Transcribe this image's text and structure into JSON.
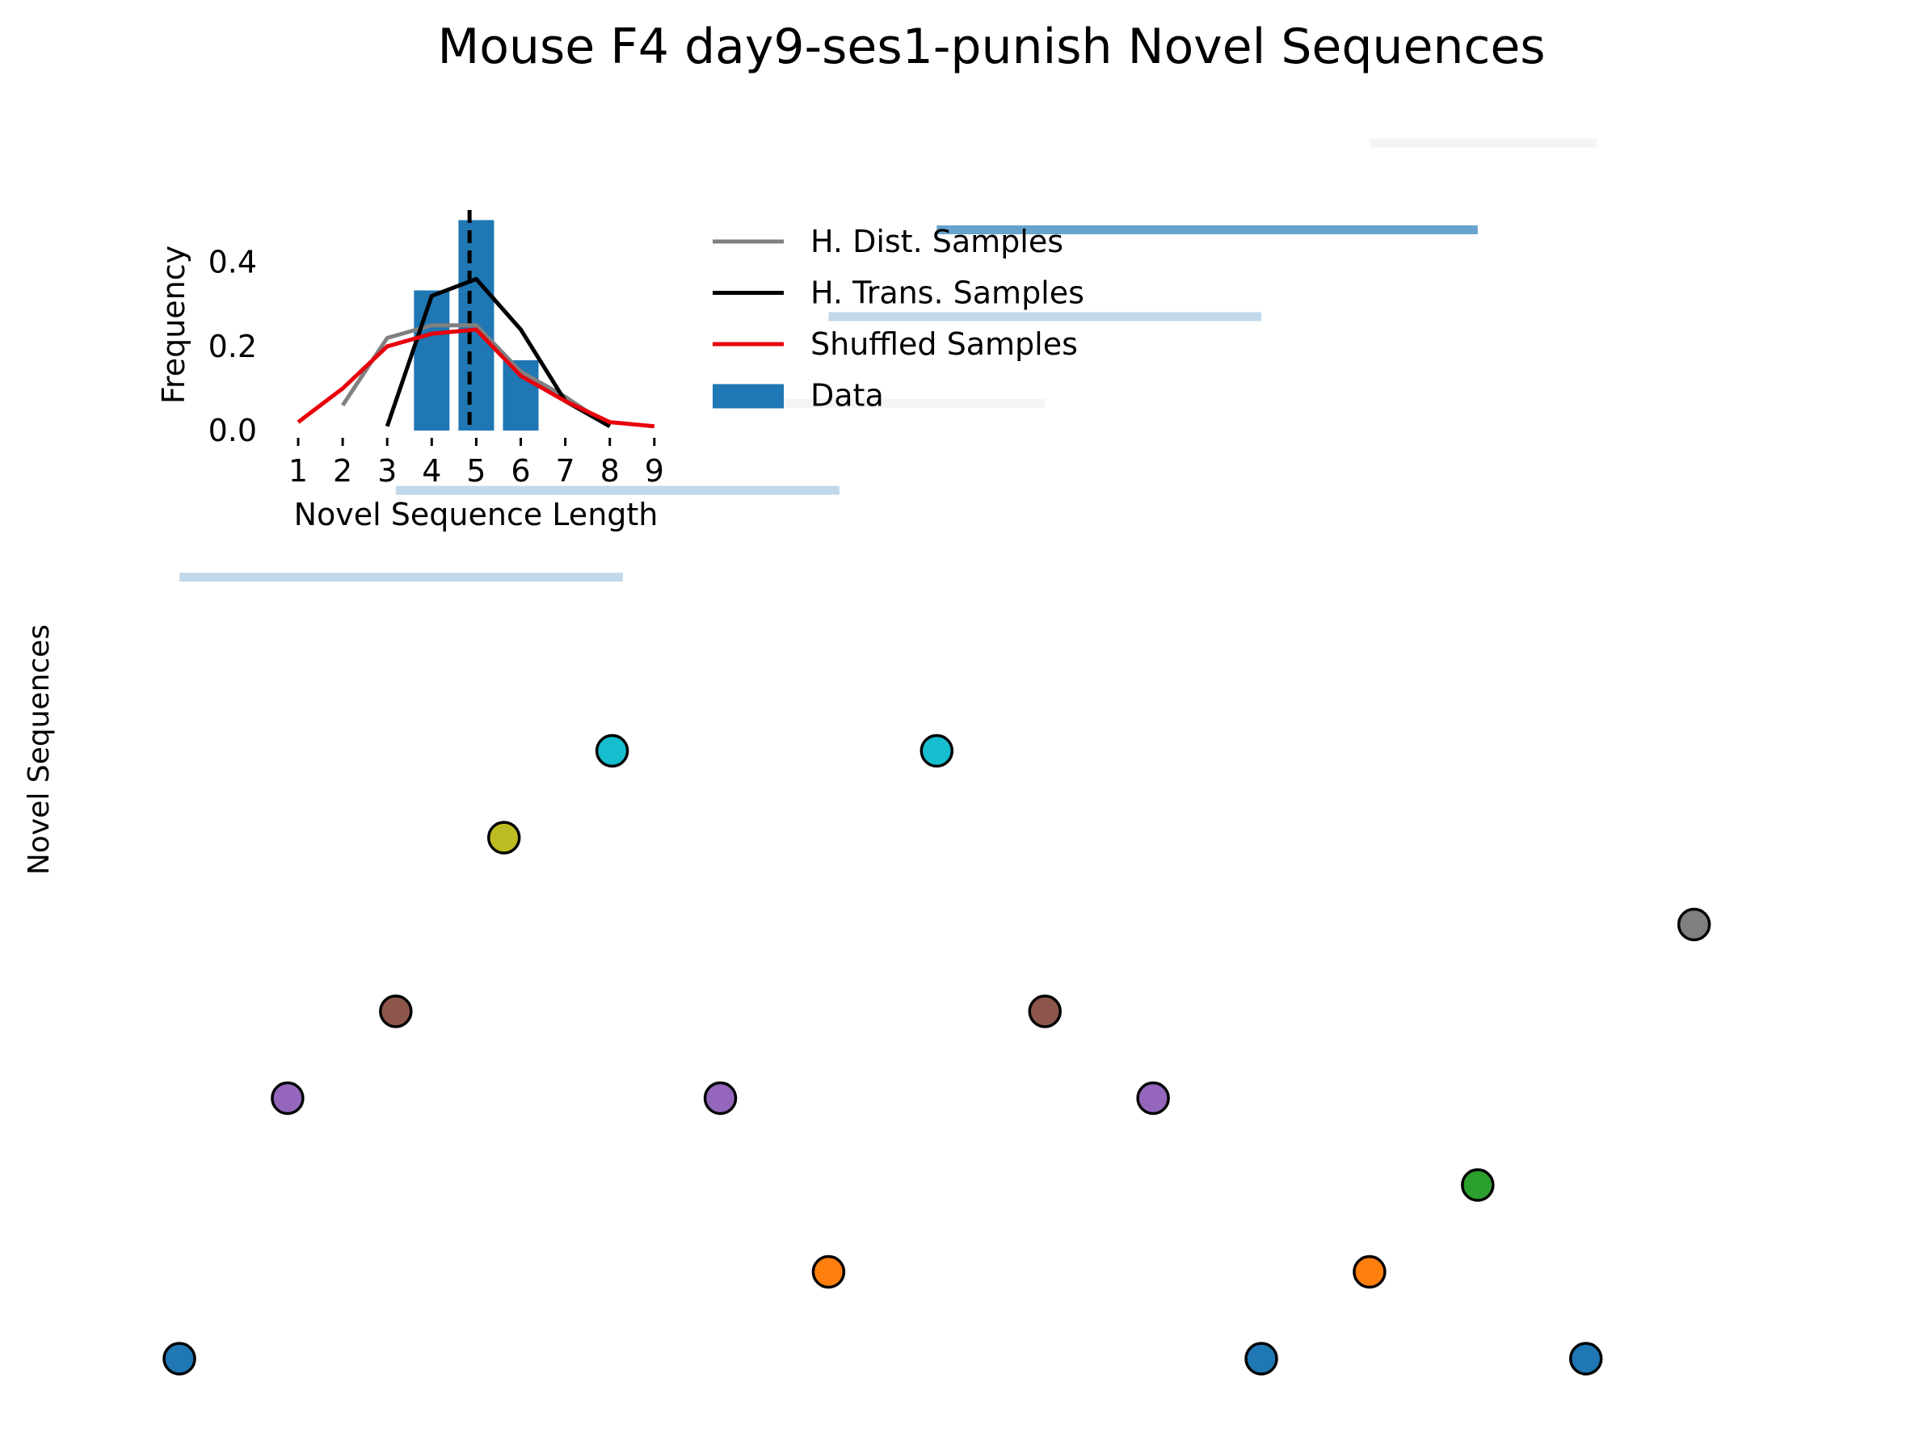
{
  "title": "Mouse F4 day9-ses1-punish Novel Sequences",
  "chart_data": [
    {
      "type": "scatter",
      "ylabel": "Novel Sequences",
      "axes_visible": false,
      "points": [
        {
          "x": 0,
          "y": 0,
          "color": "#1f77b4"
        },
        {
          "x": 1,
          "y": 3,
          "color": "#9467bd"
        },
        {
          "x": 2,
          "y": 4,
          "color": "#8c564b"
        },
        {
          "x": 3,
          "y": 6,
          "color": "#bcbd22"
        },
        {
          "x": 4,
          "y": 7,
          "color": "#17becf"
        },
        {
          "x": 5,
          "y": 3,
          "color": "#9467bd"
        },
        {
          "x": 6,
          "y": 1,
          "color": "#ff7f0e"
        },
        {
          "x": 7,
          "y": 7,
          "color": "#17becf"
        },
        {
          "x": 8,
          "y": 4,
          "color": "#8c564b"
        },
        {
          "x": 9,
          "y": 3,
          "color": "#9467bd"
        },
        {
          "x": 10,
          "y": 0,
          "color": "#1f77b4"
        },
        {
          "x": 11,
          "y": 1,
          "color": "#ff7f0e"
        },
        {
          "x": 12,
          "y": 2,
          "color": "#2ca02c"
        },
        {
          "x": 13,
          "y": 0,
          "color": "#1f77b4"
        },
        {
          "x": 14,
          "y": 5,
          "color": "#7f7f7f"
        }
      ],
      "span_bars": [
        {
          "x0": 0.0,
          "x1": 4.1,
          "level": 9,
          "color": "#1f77b4",
          "opacity": 0.28
        },
        {
          "x0": 2.0,
          "x1": 6.1,
          "level": 10,
          "color": "#1f77b4",
          "opacity": 0.28
        },
        {
          "x0": 5.5,
          "x1": 8.0,
          "level": 11,
          "color": "#d9d9d9",
          "opacity": 0.3
        },
        {
          "x0": 6.0,
          "x1": 10.0,
          "level": 12,
          "color": "#1f77b4",
          "opacity": 0.28
        },
        {
          "x0": 7.0,
          "x1": 12.0,
          "level": 13,
          "color": "#1f77b4",
          "opacity": 0.68
        },
        {
          "x0": 11.0,
          "x1": 13.1,
          "level": 14,
          "color": "#d9d9d9",
          "opacity": 0.3
        }
      ]
    },
    {
      "type": "bar",
      "xlabel": "Novel Sequence Length",
      "ylabel": "Frequency",
      "ylim": [
        0,
        0.5
      ],
      "x_ticks": [
        1,
        2,
        3,
        4,
        5,
        6,
        7,
        8,
        9
      ],
      "y_ticks": [
        "0.0",
        "0.2",
        "0.4"
      ],
      "y_tick_values": [
        0.0,
        0.2,
        0.4
      ],
      "bars": {
        "name": "Data",
        "categories": [
          4,
          5,
          6
        ],
        "values": [
          0.333,
          0.5,
          0.167
        ],
        "color": "#1f77b4"
      },
      "dashed_line_x": 4.85,
      "series": [
        {
          "name": "H. Dist. Samples",
          "color": "#808080",
          "x": [
            2,
            3,
            4,
            5,
            6,
            7,
            8
          ],
          "y": [
            0.06,
            0.22,
            0.25,
            0.25,
            0.14,
            0.08,
            0.01
          ]
        },
        {
          "name": "H. Trans. Samples",
          "color": "#000000",
          "x": [
            3,
            4,
            5,
            6,
            7,
            8
          ],
          "y": [
            0.01,
            0.32,
            0.36,
            0.24,
            0.07,
            0.01
          ]
        },
        {
          "name": "Shuffled Samples",
          "color": "#e8000b",
          "x": [
            1,
            2,
            3,
            4,
            5,
            6,
            7,
            8,
            9
          ],
          "y": [
            0.02,
            0.1,
            0.2,
            0.23,
            0.24,
            0.13,
            0.07,
            0.02,
            0.01
          ]
        }
      ],
      "legend": [
        {
          "label": "H. Dist. Samples",
          "kind": "line",
          "color": "#808080"
        },
        {
          "label": "H. Trans. Samples",
          "kind": "line",
          "color": "#000000"
        },
        {
          "label": "Shuffled Samples",
          "kind": "line",
          "color": "#e8000b"
        },
        {
          "label": "Data",
          "kind": "patch",
          "color": "#1f77b4"
        }
      ]
    }
  ]
}
